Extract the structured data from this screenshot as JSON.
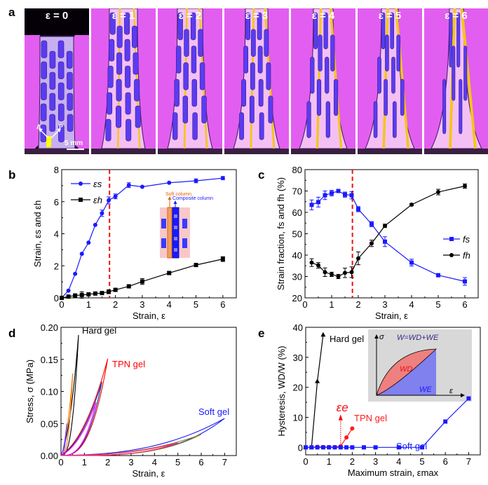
{
  "figure": {
    "panel_labels": [
      "a",
      "b",
      "c",
      "d",
      "e"
    ],
    "photos": {
      "captions": [
        "ε = 0",
        "ε = 1",
        "ε = 2",
        "ε = 3",
        "ε = 4",
        "ε = 5",
        "ε = 6"
      ],
      "scale_bar": "5 mm",
      "axis_labels": [
        "A",
        "P"
      ],
      "colors": {
        "background": "#e25ef0",
        "hard": "#6a3cf0",
        "soft": "#f0c020"
      }
    }
  },
  "chart_data": [
    {
      "id": "b",
      "type": "line",
      "title": "",
      "xlabel": "Strain, ε",
      "ylabel": "Strain, εs and εh",
      "xlim": [
        0,
        6.5
      ],
      "ylim": [
        0,
        8
      ],
      "xticks": [
        0,
        1,
        2,
        3,
        4,
        5,
        6
      ],
      "yticks": [
        0,
        2,
        4,
        6,
        8
      ],
      "vline": 1.78,
      "legend": "top-left",
      "series": [
        {
          "name": "εs",
          "color": "#1a1aff",
          "marker": "circle",
          "x": [
            0,
            0.25,
            0.5,
            0.75,
            1,
            1.25,
            1.5,
            1.75,
            2,
            2.5,
            3,
            4,
            5,
            6
          ],
          "y": [
            0,
            0.45,
            1.5,
            2.75,
            3.45,
            4.55,
            5.28,
            6.08,
            6.33,
            7.03,
            6.93,
            7.18,
            7.3,
            7.47
          ],
          "err": [
            0,
            0,
            0,
            0,
            0,
            0,
            0.2,
            0.22,
            0.15,
            0.15,
            0,
            0,
            0.12,
            0.1
          ]
        },
        {
          "name": "εh",
          "color": "#000000",
          "marker": "square",
          "x": [
            0,
            0.25,
            0.5,
            0.75,
            1,
            1.25,
            1.5,
            1.75,
            2,
            2.5,
            3,
            4,
            5,
            6
          ],
          "y": [
            0,
            0.08,
            0.15,
            0.18,
            0.22,
            0.27,
            0.3,
            0.38,
            0.5,
            0.72,
            1.02,
            1.55,
            2.05,
            2.42
          ],
          "err": [
            0,
            0,
            0,
            0.2,
            0,
            0,
            0,
            0.12,
            0.08,
            0,
            0.18,
            0.1,
            0,
            0.15
          ]
        }
      ],
      "annotations": [
        "Soft column",
        "Composite column"
      ]
    },
    {
      "id": "c",
      "type": "line",
      "title": "",
      "xlabel": "Strain, ε",
      "ylabel": "Strain fraction, fs and fh (%)",
      "xlim": [
        0,
        6.5
      ],
      "ylim": [
        20,
        80
      ],
      "xticks": [
        0,
        1,
        2,
        3,
        4,
        5,
        6
      ],
      "yticks": [
        20,
        30,
        40,
        50,
        60,
        70,
        80
      ],
      "vline": 1.78,
      "legend": "right",
      "series": [
        {
          "name": "fs",
          "color": "#1a1aff",
          "marker": "square",
          "x": [
            0.25,
            0.5,
            0.75,
            1,
            1.25,
            1.5,
            1.75,
            2,
            2.5,
            3,
            4,
            5,
            6
          ],
          "y": [
            63.5,
            64.8,
            68,
            69,
            70,
            68.3,
            68,
            61.5,
            54.5,
            46.3,
            36.5,
            30.6,
            27.7
          ],
          "err": [
            2.3,
            2.3,
            2,
            1.3,
            0.5,
            1.2,
            1.7,
            1.2,
            1.2,
            2.3,
            1.6,
            0.5,
            1.8
          ]
        },
        {
          "name": "fh",
          "color": "#000000",
          "marker": "circle",
          "x": [
            0.25,
            0.5,
            0.75,
            1,
            1.25,
            1.5,
            1.75,
            2,
            2.5,
            3,
            4,
            5,
            6
          ],
          "y": [
            36.5,
            35.2,
            32,
            31,
            30,
            31.7,
            32,
            38.5,
            45.5,
            53.7,
            63.6,
            69.5,
            72.3
          ],
          "err": [
            1.8,
            1.3,
            2,
            1,
            1,
            2.2,
            2.5,
            3,
            1.5,
            0.8,
            0.5,
            1.3,
            1
          ]
        }
      ]
    },
    {
      "id": "d",
      "type": "line",
      "title": "",
      "xlabel": "Strain, ε",
      "ylabel": "Stress, σ (MPa)",
      "xlim": [
        0,
        7.5
      ],
      "ylim": [
        0,
        0.2
      ],
      "xticks": [
        0,
        1,
        2,
        3,
        4,
        5,
        6,
        7
      ],
      "yticks": [
        0.0,
        0.05,
        0.1,
        0.15,
        0.2
      ],
      "ytick_labels": [
        "0.00",
        "0.05",
        "0.10",
        "0.15",
        "0.20"
      ],
      "series": [
        {
          "name": "Hard gel",
          "color": "#000000",
          "max_strain": 0.75,
          "max_stress": 0.188
        },
        {
          "name": "Hard gel (εmax 0.5)",
          "color": "#ff7a00",
          "max_strain": 0.5,
          "max_stress": 0.128
        },
        {
          "name": "Hard gel (εmax 0.25)",
          "color": "#7a3cff",
          "max_strain": 0.25,
          "max_stress": 0.05
        },
        {
          "name": "TPN gel",
          "color": "#ff0000",
          "max_strain": 2.0,
          "max_stress": 0.151
        },
        {
          "name": "TPN gel (εmax 1.75)",
          "color": "#1a2aa0",
          "max_strain": 1.75,
          "max_stress": 0.115
        },
        {
          "name": "TPN gel (εmax 1.5)",
          "color": "#ff00ff",
          "max_strain": 1.5,
          "max_stress": 0.083
        },
        {
          "name": "Soft gel",
          "color": "#1a1aff",
          "max_strain": 7.0,
          "max_stress": 0.058
        },
        {
          "name": "Soft gel (εmax 6)",
          "color": "#8a8a20",
          "max_strain": 6.0,
          "max_stress": 0.033
        },
        {
          "name": "Soft gel (εmax 5)",
          "color": "#ff1a6e",
          "max_strain": 5.0,
          "max_stress": 0.02
        }
      ],
      "labels": [
        "Hard gel",
        "TPN gel",
        "Soft gel"
      ]
    },
    {
      "id": "e",
      "type": "line",
      "title": "",
      "xlabel": "Maximum strain, εmax",
      "ylabel": "Hysteresis, WD/W (%)",
      "xlim": [
        0,
        7.5
      ],
      "ylim": [
        -2.5,
        40
      ],
      "xticks": [
        0,
        1,
        2,
        3,
        4,
        5,
        6,
        7
      ],
      "yticks": [
        0,
        10,
        20,
        30,
        40
      ],
      "series": [
        {
          "name": "Hard gel",
          "color": "#000000",
          "marker": "triangle",
          "x": [
            0,
            0.25,
            0.5,
            0.75
          ],
          "y": [
            0,
            0,
            22,
            37.5
          ]
        },
        {
          "name": "TPN gel",
          "color": "#ff1a1a",
          "marker": "circle",
          "x": [
            0,
            0.25,
            0.5,
            0.75,
            1,
            1.25,
            1.5,
            1.75,
            2
          ],
          "y": [
            0,
            0,
            0.2,
            0.1,
            0.1,
            0.1,
            0.4,
            3.3,
            6.3
          ]
        },
        {
          "name": "Soft gel",
          "color": "#1a1aff",
          "marker": "square",
          "x": [
            0,
            0.25,
            0.5,
            0.75,
            1,
            1.25,
            1.5,
            1.75,
            2,
            2.5,
            3,
            4,
            5,
            6,
            7
          ],
          "y": [
            0,
            0,
            0,
            0,
            0,
            0,
            0,
            0,
            0,
            0,
            0,
            0,
            0,
            8.6,
            16.3
          ]
        }
      ],
      "annotation": {
        "label": "εe",
        "x": 1.5
      },
      "inset": {
        "title": "W=WD+WE",
        "regions": [
          "WD",
          "WE"
        ],
        "axes": [
          "σ",
          "ε"
        ]
      }
    }
  ]
}
